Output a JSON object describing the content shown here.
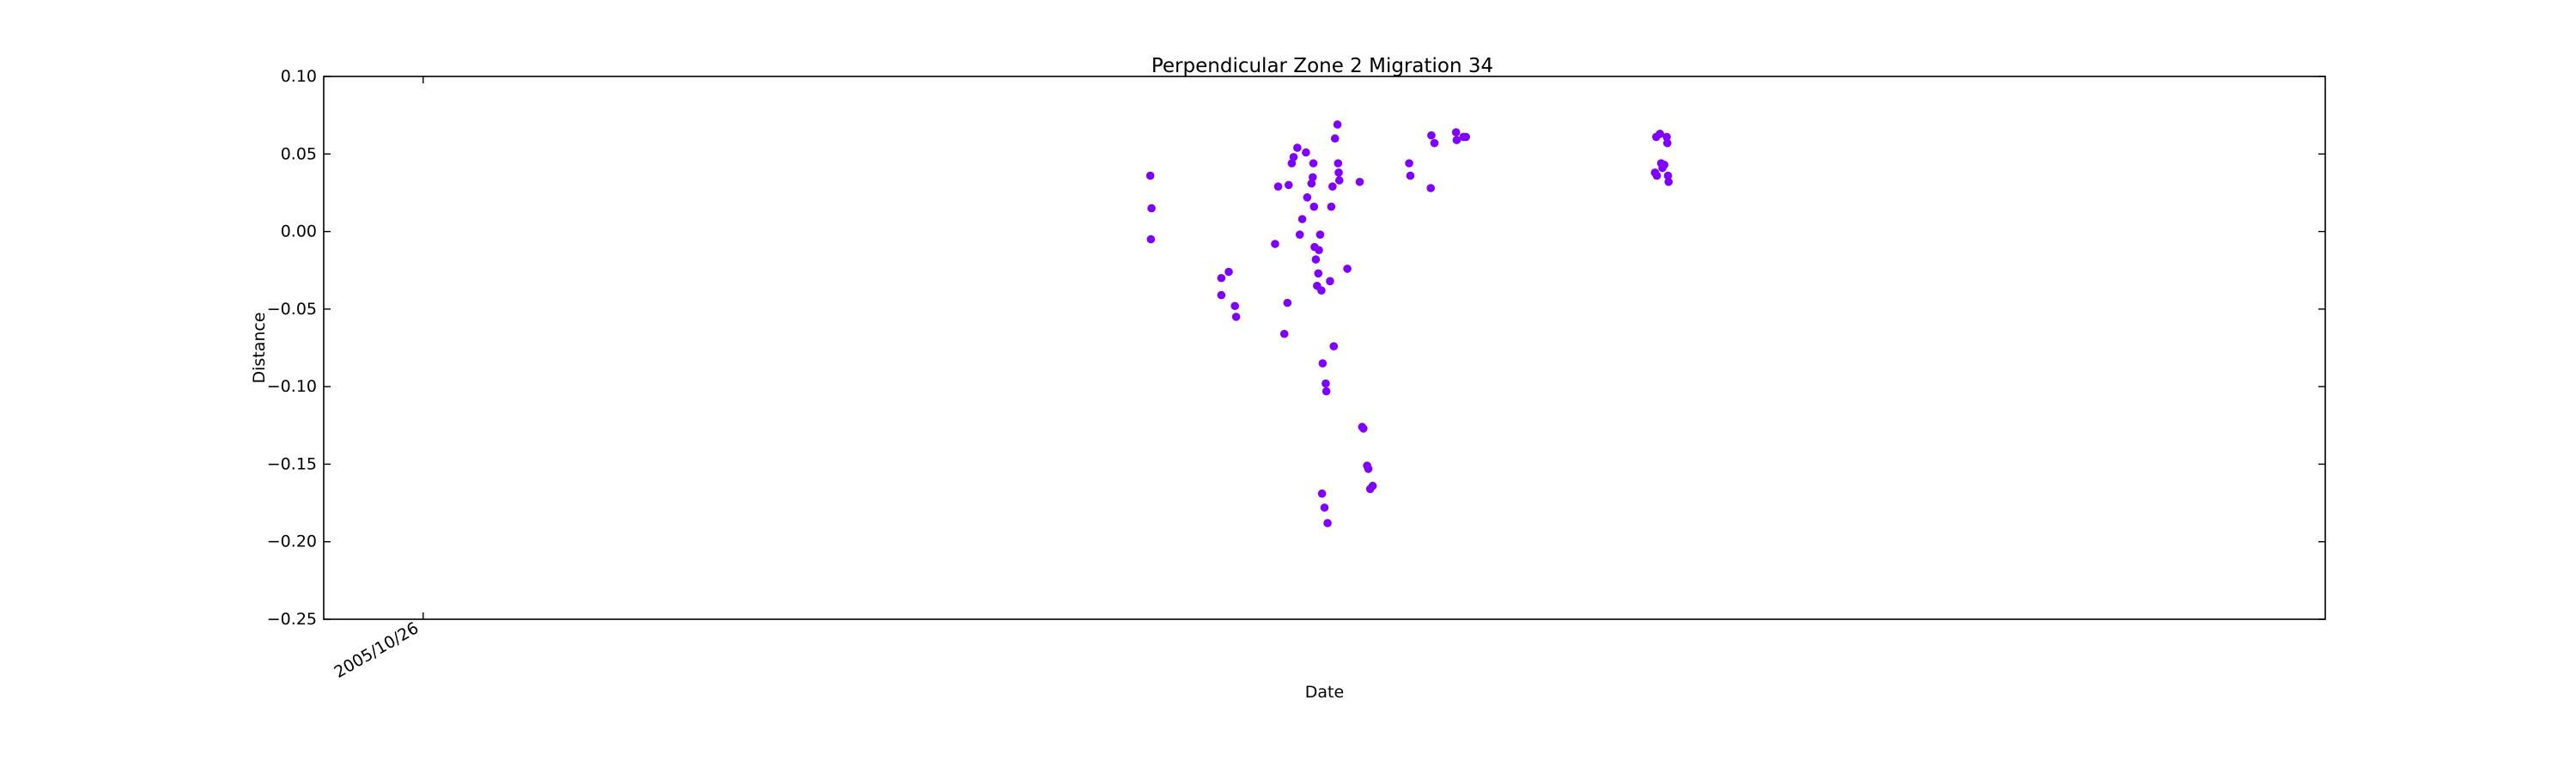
{
  "chart_data": {
    "type": "scatter",
    "title": "Perpendicular Zone 2 Migration 34",
    "xlabel": "Date",
    "ylabel": "Distance",
    "ylim": [
      -0.25,
      0.1
    ],
    "yticks": [
      "0.10",
      "0.05",
      "0.00",
      "−0.05",
      "−0.10",
      "−0.15",
      "−0.20",
      "−0.25"
    ],
    "ytick_values": [
      0.1,
      0.05,
      0.0,
      -0.05,
      -0.1,
      -0.15,
      -0.2,
      -0.25
    ],
    "xlim": [
      "2005/05/18",
      "2014/04/01"
    ],
    "xticks": [
      {
        "date": "2005/10/26",
        "label": "2005/10/26"
      }
    ],
    "grid": false,
    "marker_color": "#7f00ff",
    "series": [
      {
        "points": [
          {
            "x": "2009/01/15",
            "y": 0.036
          },
          {
            "x": "2009/01/17",
            "y": 0.015
          },
          {
            "x": "2009/01/16",
            "y": -0.005
          },
          {
            "x": "2009/05/10",
            "y": -0.03
          },
          {
            "x": "2009/05/10",
            "y": -0.041
          },
          {
            "x": "2009/05/22",
            "y": -0.026
          },
          {
            "x": "2009/06/01",
            "y": -0.048
          },
          {
            "x": "2009/06/03",
            "y": -0.055
          },
          {
            "x": "2009/08/05",
            "y": -0.008
          },
          {
            "x": "2009/08/10",
            "y": 0.029
          },
          {
            "x": "2009/08/20",
            "y": -0.066
          },
          {
            "x": "2009/08/25",
            "y": -0.046
          },
          {
            "x": "2009/08/27",
            "y": 0.03
          },
          {
            "x": "2009/09/01",
            "y": 0.044
          },
          {
            "x": "2009/09/04",
            "y": 0.048
          },
          {
            "x": "2009/09/10",
            "y": 0.054
          },
          {
            "x": "2009/09/14",
            "y": -0.002
          },
          {
            "x": "2009/09/18",
            "y": 0.008
          },
          {
            "x": "2009/09/24",
            "y": 0.051
          },
          {
            "x": "2009/09/26",
            "y": 0.022
          },
          {
            "x": "2009/10/03",
            "y": 0.031
          },
          {
            "x": "2009/10/05",
            "y": 0.035
          },
          {
            "x": "2009/10/06",
            "y": 0.044
          },
          {
            "x": "2009/10/07",
            "y": 0.016
          },
          {
            "x": "2009/10/08",
            "y": -0.01
          },
          {
            "x": "2009/10/10",
            "y": -0.018
          },
          {
            "x": "2009/10/12",
            "y": -0.035
          },
          {
            "x": "2009/10/14",
            "y": -0.027
          },
          {
            "x": "2009/10/15",
            "y": -0.012
          },
          {
            "x": "2009/10/17",
            "y": -0.002
          },
          {
            "x": "2009/10/19",
            "y": -0.038
          },
          {
            "x": "2009/10/20",
            "y": -0.169
          },
          {
            "x": "2009/10/21",
            "y": -0.085
          },
          {
            "x": "2009/10/24",
            "y": -0.178
          },
          {
            "x": "2009/10/26",
            "y": -0.098
          },
          {
            "x": "2009/10/27",
            "y": -0.103
          },
          {
            "x": "2009/10/29",
            "y": -0.188
          },
          {
            "x": "2009/11/02",
            "y": -0.032
          },
          {
            "x": "2009/11/04",
            "y": 0.016
          },
          {
            "x": "2009/11/06",
            "y": 0.029
          },
          {
            "x": "2009/11/08",
            "y": -0.074
          },
          {
            "x": "2009/11/10",
            "y": 0.06
          },
          {
            "x": "2009/11/14",
            "y": 0.069
          },
          {
            "x": "2009/11/15",
            "y": 0.044
          },
          {
            "x": "2009/11/16",
            "y": 0.038
          },
          {
            "x": "2009/11/17",
            "y": 0.033
          },
          {
            "x": "2009/11/30",
            "y": -0.024
          },
          {
            "x": "2009/12/20",
            "y": 0.032
          },
          {
            "x": "2009/12/24",
            "y": -0.126
          },
          {
            "x": "2009/12/26",
            "y": -0.127
          },
          {
            "x": "2010/01/01",
            "y": -0.151
          },
          {
            "x": "2010/01/03",
            "y": -0.153
          },
          {
            "x": "2010/01/06",
            "y": -0.166
          },
          {
            "x": "2010/01/10",
            "y": -0.164
          },
          {
            "x": "2010/03/10",
            "y": 0.044
          },
          {
            "x": "2010/03/12",
            "y": 0.036
          },
          {
            "x": "2010/04/14",
            "y": 0.028
          },
          {
            "x": "2010/04/15",
            "y": 0.062
          },
          {
            "x": "2010/04/20",
            "y": 0.057
          },
          {
            "x": "2010/05/25",
            "y": 0.064
          },
          {
            "x": "2010/05/26",
            "y": 0.059
          },
          {
            "x": "2010/06/06",
            "y": 0.061
          },
          {
            "x": "2010/06/10",
            "y": 0.061
          },
          {
            "x": "2011/04/12",
            "y": 0.038
          },
          {
            "x": "2011/04/14",
            "y": 0.061
          },
          {
            "x": "2011/04/15",
            "y": 0.036
          },
          {
            "x": "2011/04/20",
            "y": 0.063
          },
          {
            "x": "2011/04/22",
            "y": 0.044
          },
          {
            "x": "2011/04/24",
            "y": 0.041
          },
          {
            "x": "2011/04/27",
            "y": 0.043
          },
          {
            "x": "2011/05/01",
            "y": 0.061
          },
          {
            "x": "2011/05/02",
            "y": 0.057
          },
          {
            "x": "2011/05/03",
            "y": 0.036
          },
          {
            "x": "2011/05/04",
            "y": 0.032
          }
        ]
      }
    ]
  }
}
